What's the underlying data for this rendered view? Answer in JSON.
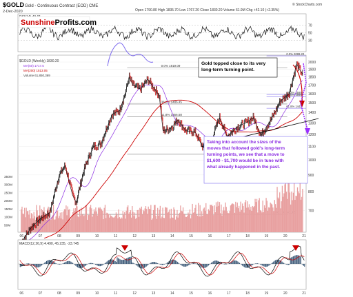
{
  "header": {
    "ticker": "$GOLD",
    "description": "Gold - Continuous Contract (EOD) CME",
    "date": "2-Dec-2020",
    "quote": "Open 1790.80  High 1835.70  Low 1767.20  Close 1830.20  Volume 61.9M  Chg +42.10 (+2.35%)",
    "copyright": "© StockCharts.com"
  },
  "logo": {
    "part1": "Sunshine",
    "part2": "Profits.com"
  },
  "panels": {
    "rsi_label": "RSI(14) 40.01",
    "price_label": "$GOLD (Weekly) 1830.20",
    "ma50_label": "MA(50) 1717.5",
    "ma200_label": "MA(200) 1513.05",
    "volume_label": "Volume 61,850,369",
    "macd_label": "MACD(12,26,9) 4.490, 45.235, -23.745"
  },
  "annotations": {
    "top_box": "Gold topped close to its very long-term turning point.",
    "bottom_box": "Taking into account the sizes of the moves that followed gold's long-term turning points, we see that a move to $1,600 - $1,700 would be in tune with what already happened in the past.",
    "colors": {
      "annotation_text": "#8a2be2",
      "arrow": "#cc0000",
      "price_up": "#111111",
      "price_down": "#cc0000"
    }
  },
  "chart_data": {
    "type": "line",
    "x": [
      2006,
      2006.5,
      2007,
      2007.5,
      2008,
      2008.3,
      2008.7,
      2008.9,
      2009.3,
      2009.8,
      2010.2,
      2010.8,
      2011.2,
      2011.5,
      2011.7,
      2011.9,
      2012.3,
      2012.7,
      2012.9,
      2013.3,
      2013.5,
      2013.9,
      2014.3,
      2014.7,
      2015.2,
      2015.6,
      2015.9,
      2016.5,
      2016.9,
      2017.5,
      2017.9,
      2018.3,
      2018.7,
      2019.2,
      2019.5,
      2019.7,
      2020.2,
      2020.6,
      2020.75,
      2020.92
    ],
    "series": [
      {
        "values": [
          560,
          620,
          660,
          690,
          900,
          960,
          780,
          740,
          930,
          1100,
          1120,
          1380,
          1420,
          1600,
          1800,
          1700,
          1650,
          1770,
          1700,
          1580,
          1230,
          1250,
          1330,
          1230,
          1220,
          1100,
          1060,
          1350,
          1180,
          1270,
          1300,
          1350,
          1190,
          1320,
          1420,
          1510,
          1600,
          1970,
          1900,
          1830
        ]
      }
    ],
    "fib_levels": [
      {
        "label": "0.0% 1919.09",
        "value": 1919
      },
      {
        "label": "38.2% 1486.45",
        "value": 1486
      },
      {
        "label": "61.8% 1356.58",
        "value": 1357
      },
      {
        "label": "100.0% 1042.50",
        "value": 1042
      },
      {
        "label": "100.0% 681.02",
        "value": 681
      }
    ],
    "fib_levels_recent": [
      {
        "label": "0.0% 2089.20",
        "value": 2089
      },
      {
        "label": "38.2% 1590",
        "value": 1590
      },
      {
        "label": "50.0% 1566",
        "value": 1566
      },
      {
        "label": "61.8% 1442",
        "value": 1442
      }
    ],
    "y_ticks": [
      700,
      800,
      900,
      1000,
      1100,
      1200,
      1300,
      1400,
      1500,
      1600,
      1700,
      1800,
      1900,
      2000
    ],
    "volume_ticks": [
      "350M",
      "300M",
      "250M",
      "200M",
      "150M",
      "100M",
      "50M"
    ],
    "rsi_ticks": [
      70,
      50,
      30
    ],
    "x_labels": [
      "06",
      "07",
      "08",
      "09",
      "10",
      "11",
      "12",
      "13",
      "14",
      "15",
      "16",
      "17",
      "18",
      "19",
      "20",
      "21"
    ],
    "ylim": [
      600,
      2100
    ],
    "log_scale": true,
    "grid": true
  }
}
